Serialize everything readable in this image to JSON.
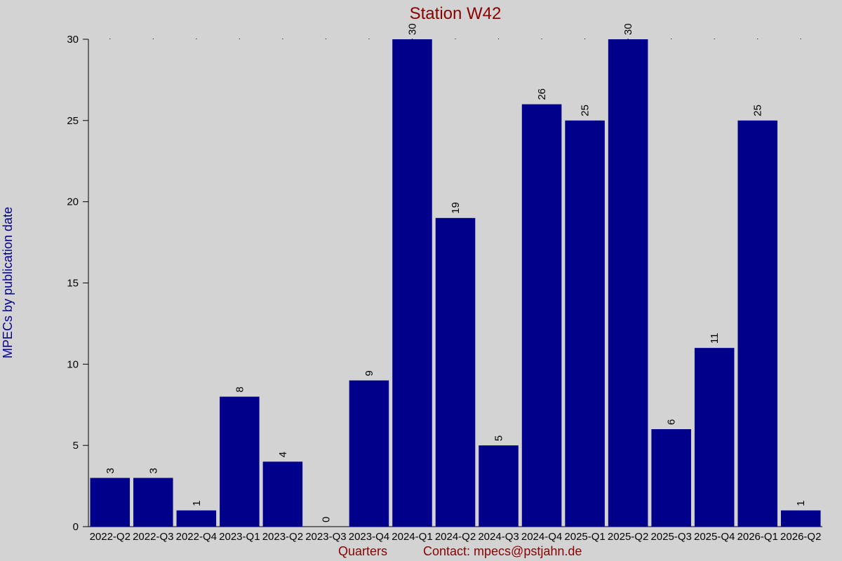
{
  "chart_data": {
    "type": "bar",
    "title": "Station W42",
    "xlabel": "Quarters",
    "ylabel": "MPECs by publication date",
    "contact": "Contact: mpecs@pstjahn.de",
    "categories": [
      "2022-Q2",
      "2022-Q3",
      "2022-Q4",
      "2023-Q1",
      "2023-Q2",
      "2023-Q3",
      "2023-Q4",
      "2024-Q1",
      "2024-Q2",
      "2024-Q3",
      "2024-Q4",
      "2025-Q1",
      "2025-Q2",
      "2025-Q3",
      "2025-Q4",
      "2026-Q1",
      "2026-Q2"
    ],
    "values": [
      3,
      3,
      1,
      8,
      4,
      0,
      9,
      30,
      19,
      5,
      26,
      25,
      30,
      6,
      11,
      25,
      1
    ],
    "ylim": [
      0,
      30
    ],
    "yticks": [
      0,
      5,
      10,
      15,
      20,
      25,
      30
    ],
    "grid": false,
    "colors": {
      "background": "#d3d3d3",
      "bar": "#00008b",
      "title": "#8b0000",
      "ylabel": "#00008b",
      "footer": "#8b0000",
      "text": "#000000"
    }
  }
}
